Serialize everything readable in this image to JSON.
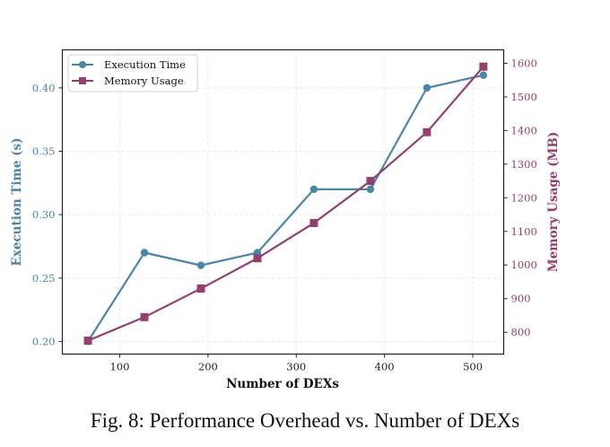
{
  "chart_data": {
    "type": "line",
    "title": "",
    "xlabel": "Number of DEXs",
    "ylabel_left": "Execution Time (s)",
    "ylabel_right": "Memory Usage (MB)",
    "x": [
      64,
      128,
      192,
      256,
      320,
      384,
      448,
      512
    ],
    "xlim": [
      35,
      535
    ],
    "ylim_left": [
      0.19,
      0.43
    ],
    "ylim_right": [
      735,
      1640
    ],
    "xticks": [
      100,
      200,
      300,
      400,
      500
    ],
    "yticks_left": [
      "0.20",
      "0.25",
      "0.30",
      "0.35",
      "0.40"
    ],
    "yticks_right": [
      "800",
      "900",
      "1000",
      "1100",
      "1200",
      "1300",
      "1400",
      "1500",
      "1600"
    ],
    "grid": true,
    "legend_position": "top-left",
    "series": [
      {
        "name": "Execution Time",
        "axis": "left",
        "marker": "circle",
        "color": "#4a86a8",
        "values": [
          0.2,
          0.27,
          0.26,
          0.27,
          0.32,
          0.32,
          0.4,
          0.41
        ]
      },
      {
        "name": "Memory Usage",
        "axis": "right",
        "marker": "square",
        "color": "#93406e",
        "values": [
          775,
          845,
          930,
          1020,
          1125,
          1250,
          1395,
          1590
        ]
      }
    ]
  },
  "caption": "Fig. 8: Performance Overhead vs. Number of DEXs"
}
